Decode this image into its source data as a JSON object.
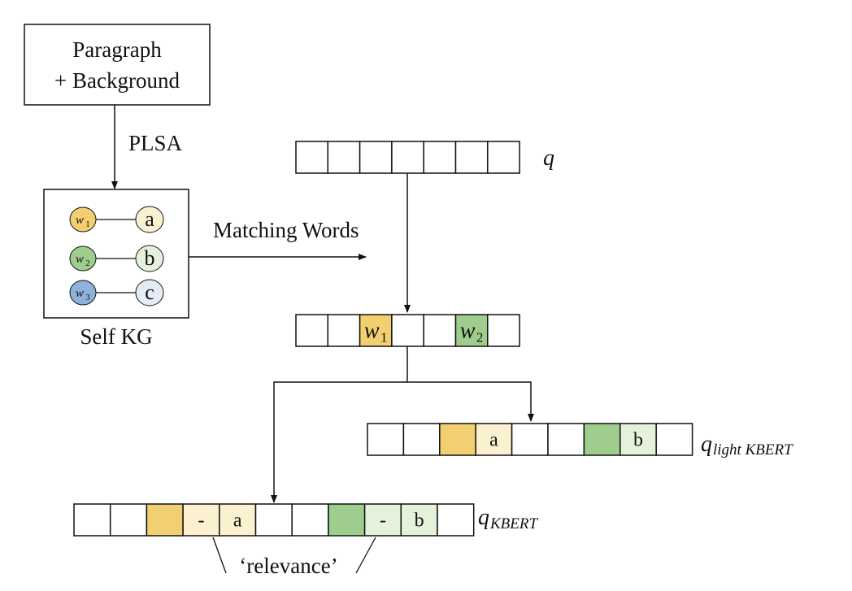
{
  "source_box": {
    "line1": "Paragraph",
    "line2": "+ Background"
  },
  "plsa_label": "PLSA",
  "kg": {
    "caption": "Self KG",
    "pairs": [
      {
        "w": "w",
        "w_sub": "1",
        "w_color": "#f2cf70",
        "node": "a",
        "node_color": "#fbf0cf"
      },
      {
        "w": "w",
        "w_sub": "2",
        "w_color": "#9fcd8e",
        "node": "b",
        "node_color": "#e6f1dc"
      },
      {
        "w": "w",
        "w_sub": "3",
        "w_color": "#8fb2dd",
        "node": "c",
        "node_color": "#e3edf8"
      }
    ]
  },
  "matching_label": "Matching Words",
  "q": {
    "label": "q",
    "cells": [
      "",
      "",
      "",
      "",
      "",
      "",
      ""
    ]
  },
  "matched": {
    "cells": [
      {
        "text": ""
      },
      {
        "text": ""
      },
      {
        "text": "w",
        "sub": "1",
        "fill": "#f2cf70"
      },
      {
        "text": ""
      },
      {
        "text": ""
      },
      {
        "text": "w",
        "sub": "2",
        "fill": "#9fcd8e"
      },
      {
        "text": ""
      }
    ]
  },
  "light": {
    "label_main": "q",
    "label_sub": "light KBERT",
    "cells": [
      {
        "text": ""
      },
      {
        "text": ""
      },
      {
        "text": "",
        "fill": "#f2cf70"
      },
      {
        "text": "a",
        "fill": "#fbf0cf"
      },
      {
        "text": ""
      },
      {
        "text": ""
      },
      {
        "text": "",
        "fill": "#9fcd8e"
      },
      {
        "text": "b",
        "fill": "#e6f1dc"
      },
      {
        "text": ""
      }
    ]
  },
  "kbert": {
    "label_main": "q",
    "label_sub": "KBERT",
    "cells": [
      {
        "text": ""
      },
      {
        "text": ""
      },
      {
        "text": "",
        "fill": "#f2cf70"
      },
      {
        "text": "-",
        "fill": "#fbf0cf"
      },
      {
        "text": "a",
        "fill": "#fbf0cf"
      },
      {
        "text": ""
      },
      {
        "text": ""
      },
      {
        "text": "",
        "fill": "#9fcd8e"
      },
      {
        "text": "-",
        "fill": "#e6f1dc"
      },
      {
        "text": "b",
        "fill": "#e6f1dc"
      },
      {
        "text": ""
      }
    ]
  },
  "relevance_label": "‘relevance’"
}
